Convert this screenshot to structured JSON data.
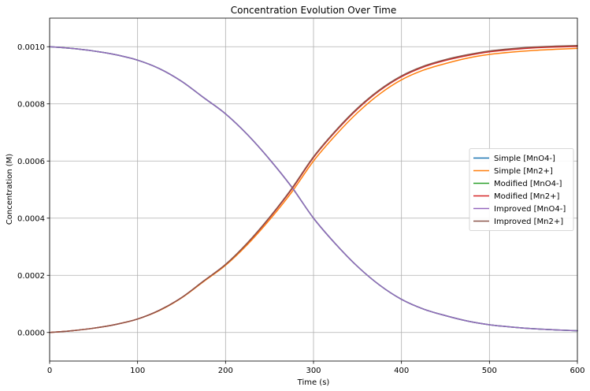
{
  "chart_data": {
    "type": "line",
    "title": "Concentration Evolution Over Time",
    "xlabel": "Time (s)",
    "ylabel": "Concentration (M)",
    "xlim": [
      0,
      600
    ],
    "ylim": [
      -0.0001,
      0.0011
    ],
    "xticks": [
      0,
      100,
      200,
      300,
      400,
      500,
      600
    ],
    "xtick_labels": [
      "0",
      "100",
      "200",
      "300",
      "400",
      "500",
      "600"
    ],
    "yticks": [
      0,
      0.0002,
      0.0004,
      0.0006,
      0.0008,
      0.001
    ],
    "ytick_labels": [
      "0.0000",
      "0.0002",
      "0.0004",
      "0.0006",
      "0.0008",
      "0.0010"
    ],
    "grid": true,
    "legend_position": "center-right",
    "x": [
      0,
      25,
      50,
      75,
      100,
      125,
      150,
      175,
      200,
      225,
      250,
      275,
      300,
      325,
      350,
      375,
      400,
      425,
      450,
      475,
      500,
      525,
      550,
      575,
      600
    ],
    "series": [
      {
        "name": "Simple [MnO4-]",
        "color": "#1f77b4",
        "values": [
          0.001,
          0.000994,
          0.000985,
          0.000972,
          0.000953,
          0.000923,
          0.000879,
          0.000822,
          0.000765,
          0.000692,
          0.000606,
          0.00051,
          0.0004,
          0.00031,
          0.000231,
          0.000166,
          0.000116,
          8.2e-05,
          5.9e-05,
          4e-05,
          2.7e-05,
          1.9e-05,
          1.3e-05,
          9e-06,
          6e-06
        ]
      },
      {
        "name": "Simple [Mn2+]",
        "color": "#ff7f0e",
        "values": [
          0.0,
          6e-06,
          1.5e-05,
          2.8e-05,
          4.7e-05,
          7.7e-05,
          0.000121,
          0.000178,
          0.000235,
          0.000308,
          0.000394,
          0.00049,
          0.0006,
          0.00069,
          0.000769,
          0.000834,
          0.000884,
          0.000918,
          0.000941,
          0.00096,
          0.000973,
          0.000981,
          0.000987,
          0.000991,
          0.000994
        ]
      },
      {
        "name": "Modified [MnO4-]",
        "color": "#2ca02c",
        "values": [
          0.001,
          0.000994,
          0.000985,
          0.000972,
          0.000953,
          0.000923,
          0.000879,
          0.000822,
          0.000765,
          0.000692,
          0.000606,
          0.00051,
          0.0004,
          0.00031,
          0.000231,
          0.000166,
          0.000116,
          8.2e-05,
          5.9e-05,
          4e-05,
          2.7e-05,
          1.9e-05,
          1.3e-05,
          9e-06,
          6e-06
        ]
      },
      {
        "name": "Modified [Mn2+]",
        "color": "#d62728",
        "values": [
          0.0,
          6e-06,
          1.5e-05,
          2.8e-05,
          4.7e-05,
          7.8e-05,
          0.000122,
          0.00018,
          0.000238,
          0.000313,
          0.000401,
          0.0005,
          0.000612,
          0.000703,
          0.000782,
          0.000846,
          0.000895,
          0.000929,
          0.000952,
          0.000969,
          0.000982,
          0.00099,
          0.000996,
          0.000999,
          0.001001
        ]
      },
      {
        "name": "Improved [MnO4-]",
        "color": "#9467bd",
        "values": [
          0.001,
          0.000994,
          0.000985,
          0.000972,
          0.000953,
          0.000923,
          0.000879,
          0.000822,
          0.000765,
          0.000692,
          0.000606,
          0.00051,
          0.0004,
          0.00031,
          0.000231,
          0.000166,
          0.000116,
          8.2e-05,
          5.9e-05,
          4e-05,
          2.7e-05,
          1.9e-05,
          1.3e-05,
          9e-06,
          6e-06
        ]
      },
      {
        "name": "Improved [Mn2+]",
        "color": "#8c564b",
        "values": [
          0.0,
          6e-06,
          1.5e-05,
          2.8e-05,
          4.7e-05,
          7.8e-05,
          0.000122,
          0.00018,
          0.000238,
          0.000314,
          0.000403,
          0.000503,
          0.000615,
          0.000706,
          0.000785,
          0.000849,
          0.000898,
          0.000932,
          0.000955,
          0.000972,
          0.000985,
          0.000993,
          0.000999,
          0.001002,
          0.001004
        ]
      }
    ]
  }
}
